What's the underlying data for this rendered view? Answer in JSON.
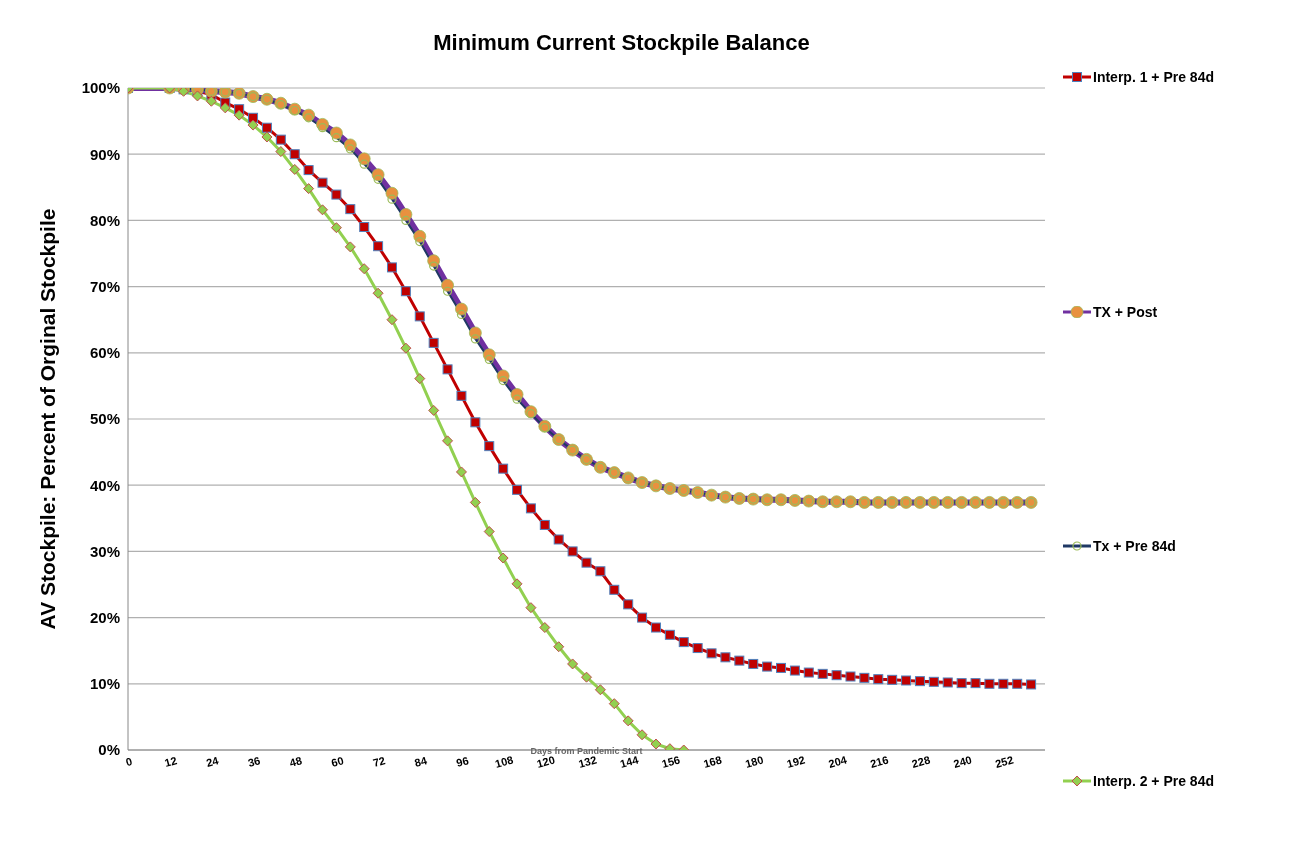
{
  "chart_data": {
    "type": "line",
    "title": "Minimum Current Stockpile Balance",
    "xlabel": "Days from Pandemic Start",
    "ylabel": "AV Stockpile: Percent of Orginal Stockpile",
    "x": [
      0,
      12,
      16,
      20,
      24,
      28,
      32,
      36,
      40,
      44,
      48,
      52,
      56,
      60,
      64,
      68,
      72,
      76,
      80,
      84,
      88,
      92,
      96,
      100,
      104,
      108,
      112,
      116,
      120,
      124,
      128,
      132,
      136,
      140,
      144,
      148,
      152,
      156,
      160,
      164,
      168,
      172,
      176,
      180,
      184,
      188,
      192,
      196,
      200,
      204,
      208,
      212,
      216,
      220,
      224,
      228,
      232,
      236,
      240,
      244,
      248,
      252,
      256,
      260
    ],
    "series": [
      {
        "name": "Interp. 1 + Pre 84d",
        "color": "#c00000",
        "marker": "square",
        "values": [
          100,
          100,
          99.8,
          99.5,
          99.0,
          97.8,
          96.8,
          95.5,
          94.0,
          92.2,
          90.0,
          87.6,
          85.7,
          83.9,
          81.7,
          79.0,
          76.1,
          72.9,
          69.3,
          65.5,
          61.5,
          57.5,
          53.5,
          49.5,
          45.9,
          42.5,
          39.3,
          36.5,
          34.0,
          31.8,
          30.0,
          28.3,
          27.0,
          24.2,
          22.0,
          20.0,
          18.5,
          17.4,
          16.3,
          15.4,
          14.6,
          14.0,
          13.5,
          13.0,
          12.6,
          12.4,
          12.0,
          11.7,
          11.5,
          11.3,
          11.1,
          10.9,
          10.7,
          10.6,
          10.5,
          10.4,
          10.3,
          10.2,
          10.1,
          10.1,
          10.0,
          10.0,
          10.0,
          9.9
        ]
      },
      {
        "name": "TX + Post",
        "color": "#7030a0",
        "marker": "circle",
        "values": [
          100,
          100,
          99.9,
          99.8,
          99.5,
          99.4,
          99.2,
          98.7,
          98.3,
          97.7,
          96.8,
          95.9,
          94.5,
          93.2,
          91.4,
          89.3,
          86.9,
          84.1,
          80.9,
          77.6,
          73.9,
          70.2,
          66.6,
          63.0,
          59.7,
          56.5,
          53.7,
          51.1,
          48.9,
          46.9,
          45.3,
          43.9,
          42.7,
          41.9,
          41.1,
          40.4,
          39.9,
          39.5,
          39.2,
          38.9,
          38.5,
          38.2,
          38.0,
          37.9,
          37.8,
          37.8,
          37.7,
          37.6,
          37.5,
          37.5,
          37.5,
          37.4,
          37.4,
          37.4,
          37.4,
          37.4,
          37.4,
          37.4,
          37.4,
          37.4,
          37.4,
          37.4,
          37.4,
          37.4
        ]
      },
      {
        "name": "Tx + Pre 84d",
        "color": "#1f3864",
        "marker": "circle",
        "values": [
          100,
          100,
          99.9,
          99.8,
          99.5,
          99.4,
          99.2,
          98.7,
          98.3,
          97.5,
          96.6,
          95.5,
          94.0,
          92.5,
          90.8,
          88.5,
          86.2,
          83.2,
          80.0,
          76.8,
          73.1,
          69.3,
          65.8,
          62.1,
          59.0,
          55.8,
          53.0,
          50.8,
          48.7,
          46.9,
          45.3,
          43.9,
          42.7,
          41.9,
          41.1,
          40.4,
          39.9,
          39.5,
          39.2,
          38.9,
          38.5,
          38.2,
          38.0,
          37.9,
          37.8,
          37.8,
          37.7,
          37.6,
          37.5,
          37.5,
          37.5,
          37.4,
          37.4,
          37.4,
          37.4,
          37.4,
          37.4,
          37.4,
          37.4,
          37.4,
          37.4,
          37.4,
          37.4,
          37.4
        ]
      },
      {
        "name": "Interp. 2 + Pre 84d",
        "color": "#92d050",
        "marker": "diamond",
        "values": [
          100,
          100,
          99.5,
          98.8,
          98.0,
          97.0,
          95.9,
          94.4,
          92.6,
          90.4,
          87.7,
          84.8,
          81.6,
          78.9,
          76.0,
          72.7,
          69.0,
          65.0,
          60.7,
          56.1,
          51.3,
          46.7,
          42.0,
          37.4,
          33.0,
          29.0,
          25.1,
          21.5,
          18.5,
          15.6,
          13.0,
          11.0,
          9.1,
          7.0,
          4.4,
          2.3,
          0.9,
          0.2,
          0,
          null,
          null,
          null,
          null,
          null,
          null,
          null,
          null,
          null,
          null,
          null,
          null,
          null,
          null,
          null,
          null,
          null,
          null,
          null,
          null,
          null,
          null,
          null,
          null,
          null
        ]
      }
    ],
    "xlim": [
      0,
      264
    ],
    "xticks": [
      0,
      12,
      24,
      36,
      48,
      60,
      72,
      84,
      96,
      108,
      120,
      132,
      144,
      156,
      168,
      180,
      192,
      204,
      216,
      228,
      240,
      252
    ],
    "ylim": [
      0,
      100
    ],
    "yticks": [
      {
        "value": 0,
        "label": "0%"
      },
      {
        "value": 10,
        "label": "10%"
      },
      {
        "value": 20,
        "label": "20%"
      },
      {
        "value": 30,
        "label": "30%"
      },
      {
        "value": 40,
        "label": "40%"
      },
      {
        "value": 50,
        "label": "50%"
      },
      {
        "value": 60,
        "label": "60%"
      },
      {
        "value": 70,
        "label": "70%"
      },
      {
        "value": 80,
        "label": "80%"
      },
      {
        "value": 90,
        "label": "90%"
      },
      {
        "value": 100,
        "label": "100%"
      }
    ],
    "grid": "y",
    "legend": "right",
    "line_style": "solid"
  }
}
